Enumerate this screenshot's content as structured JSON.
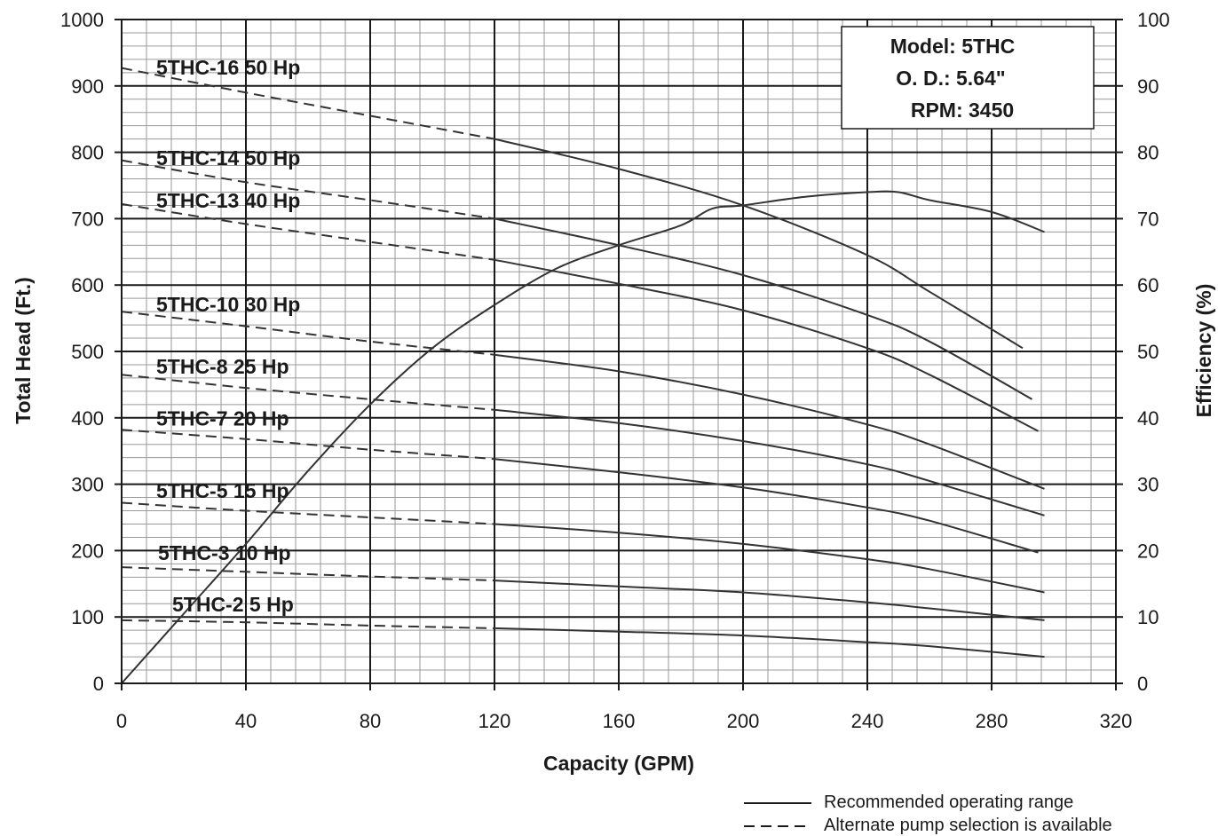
{
  "chart_data": {
    "type": "line",
    "xlabel": "Capacity (GPM)",
    "ylabel": "Total Head (Ft.)",
    "y2label": "Efficiency (%)",
    "xlim": [
      0,
      320
    ],
    "ylim": [
      0,
      1000
    ],
    "y2lim": [
      0,
      100
    ],
    "x_ticks": [
      "0",
      "40",
      "80",
      "120",
      "160",
      "200",
      "240",
      "280",
      "320"
    ],
    "y_ticks": [
      "0",
      "100",
      "200",
      "300",
      "400",
      "500",
      "600",
      "700",
      "800",
      "900",
      "1000"
    ],
    "y2_ticks": [
      "0",
      "10",
      "20",
      "30",
      "40",
      "50",
      "60",
      "70",
      "80",
      "90",
      "100"
    ],
    "grid": true,
    "info_box": [
      "Model: 5THC",
      "O. D.: 5.64\"",
      "RPM: 3450"
    ],
    "legend": {
      "solid": "Recommended operating range",
      "dashed": "Alternate pump selection is available"
    },
    "series": [
      {
        "name": "5THC-16 50 Hp",
        "split_x": 120,
        "x": [
          0,
          40,
          80,
          120,
          160,
          200,
          240,
          260,
          290
        ],
        "y": [
          927,
          890,
          855,
          820,
          775,
          720,
          645,
          590,
          505
        ]
      },
      {
        "name": "5THC-14 50 Hp",
        "split_x": 120,
        "x": [
          0,
          40,
          80,
          120,
          160,
          200,
          240,
          260,
          293
        ],
        "y": [
          788,
          755,
          728,
          700,
          660,
          615,
          555,
          515,
          428
        ]
      },
      {
        "name": "5THC-13 40 Hp",
        "split_x": 120,
        "x": [
          0,
          40,
          80,
          120,
          160,
          200,
          240,
          260,
          295
        ],
        "y": [
          722,
          692,
          665,
          638,
          602,
          562,
          505,
          465,
          380
        ]
      },
      {
        "name": "5THC-10 30 Hp",
        "split_x": 120,
        "x": [
          0,
          40,
          80,
          120,
          160,
          200,
          240,
          260,
          297
        ],
        "y": [
          560,
          538,
          515,
          495,
          470,
          435,
          390,
          360,
          293
        ]
      },
      {
        "name": "5THC-8 25 Hp",
        "split_x": 120,
        "x": [
          0,
          40,
          80,
          120,
          160,
          200,
          240,
          260,
          297
        ],
        "y": [
          465,
          445,
          428,
          412,
          392,
          365,
          330,
          305,
          253
        ]
      },
      {
        "name": "5THC-7 20 Hp",
        "split_x": 120,
        "x": [
          0,
          40,
          80,
          120,
          160,
          200,
          240,
          260,
          295
        ],
        "y": [
          382,
          368,
          352,
          338,
          318,
          295,
          265,
          245,
          197
        ]
      },
      {
        "name": "5THC-5 15 Hp",
        "split_x": 120,
        "x": [
          0,
          40,
          80,
          120,
          160,
          200,
          240,
          260,
          297
        ],
        "y": [
          272,
          260,
          250,
          240,
          227,
          210,
          187,
          172,
          137
        ]
      },
      {
        "name": "5THC-3 10 Hp",
        "split_x": 120,
        "x": [
          0,
          40,
          80,
          120,
          160,
          200,
          240,
          260,
          297
        ],
        "y": [
          175,
          168,
          161,
          155,
          146,
          137,
          122,
          113,
          95
        ]
      },
      {
        "name": "5THC-2 5 Hp",
        "split_x": 120,
        "x": [
          0,
          40,
          80,
          120,
          160,
          200,
          240,
          260,
          297
        ],
        "y": [
          95,
          92,
          87,
          83,
          78,
          72,
          62,
          56,
          40
        ]
      }
    ],
    "efficiency": {
      "x": [
        0,
        20,
        40,
        60,
        80,
        100,
        120,
        140,
        160,
        180,
        190,
        200,
        220,
        240,
        250,
        260,
        280,
        297
      ],
      "y": [
        0,
        10.5,
        21,
        32,
        42,
        50.5,
        57,
        62.5,
        66,
        69,
        71.5,
        72,
        73.3,
        74,
        74,
        72.8,
        71,
        68
      ]
    }
  }
}
